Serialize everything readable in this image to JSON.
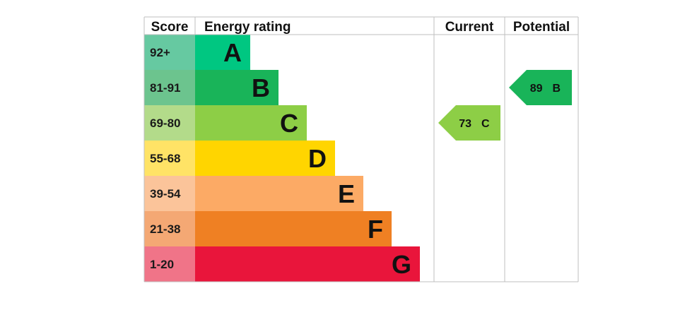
{
  "headers": {
    "score": "Score",
    "energy_rating": "Energy rating",
    "current": "Current",
    "potential": "Potential"
  },
  "chart_data": {
    "type": "bar",
    "bands": [
      {
        "letter": "A",
        "score": "92+",
        "color": "#00c781",
        "score_color": "#66c9a1",
        "width": 1
      },
      {
        "letter": "B",
        "score": "81-91",
        "color": "#19b459",
        "score_color": "#6cc48e",
        "width": 2
      },
      {
        "letter": "C",
        "score": "69-80",
        "color": "#8dce46",
        "score_color": "#b3db8a",
        "width": 3
      },
      {
        "letter": "D",
        "score": "55-68",
        "color": "#ffd500",
        "score_color": "#ffe366",
        "width": 4
      },
      {
        "letter": "E",
        "score": "39-54",
        "color": "#fcaa65",
        "score_color": "#fbc49a",
        "width": 5
      },
      {
        "letter": "F",
        "score": "21-38",
        "color": "#ef8023",
        "score_color": "#f4a874",
        "width": 6
      },
      {
        "letter": "G",
        "score": "1-20",
        "color": "#e9153b",
        "score_color": "#f07488",
        "width": 7
      }
    ],
    "current": {
      "value": 73,
      "letter": "C",
      "color": "#8dce46"
    },
    "potential": {
      "value": 89,
      "letter": "B",
      "color": "#19b459"
    }
  }
}
